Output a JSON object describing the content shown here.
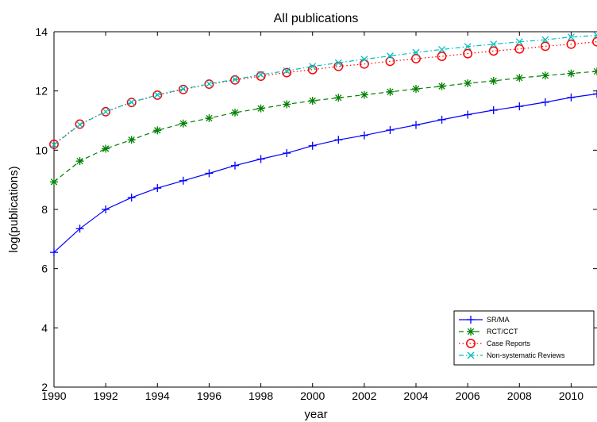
{
  "chart_data": {
    "type": "line",
    "title": "All publications",
    "xlabel": "year",
    "ylabel": "log(publications)",
    "xlim": [
      1990,
      2011
    ],
    "ylim": [
      2,
      14
    ],
    "x_ticks": [
      1990,
      1992,
      1994,
      1996,
      1998,
      2000,
      2002,
      2004,
      2006,
      2008,
      2010
    ],
    "y_ticks": [
      2,
      4,
      6,
      8,
      10,
      12,
      14
    ],
    "grid": false,
    "legend_position": "bottom-right",
    "x": [
      1990,
      1991,
      1992,
      1993,
      1994,
      1995,
      1996,
      1997,
      1998,
      1999,
      2000,
      2001,
      2002,
      2003,
      2004,
      2005,
      2006,
      2007,
      2008,
      2009,
      2010,
      2011
    ],
    "series": [
      {
        "name": "SR/MA",
        "color": "#0000ff",
        "line_style": "solid",
        "marker": "plus",
        "values": [
          6.55,
          7.35,
          8.0,
          8.4,
          8.72,
          8.97,
          9.22,
          9.48,
          9.7,
          9.9,
          10.15,
          10.35,
          10.5,
          10.68,
          10.85,
          11.03,
          11.2,
          11.35,
          11.48,
          11.62,
          11.78,
          11.9
        ]
      },
      {
        "name": "RCT/CCT",
        "color": "#008000",
        "line_style": "dashed",
        "marker": "star",
        "values": [
          8.93,
          9.63,
          10.05,
          10.35,
          10.67,
          10.9,
          11.08,
          11.27,
          11.41,
          11.55,
          11.67,
          11.77,
          11.87,
          11.97,
          12.07,
          12.16,
          12.26,
          12.34,
          12.44,
          12.52,
          12.59,
          12.66
        ]
      },
      {
        "name": "Case Reports",
        "color": "#ff0000",
        "line_style": "dotted",
        "marker": "circle",
        "values": [
          10.2,
          10.88,
          11.3,
          11.61,
          11.86,
          12.05,
          12.23,
          12.37,
          12.5,
          12.62,
          12.72,
          12.83,
          12.91,
          13.0,
          13.09,
          13.17,
          13.26,
          13.35,
          13.42,
          13.51,
          13.58,
          13.66
        ]
      },
      {
        "name": "Non-systematic Reviews",
        "color": "#00bfbf",
        "line_style": "dashdot",
        "marker": "x",
        "values": [
          10.18,
          10.86,
          11.3,
          11.62,
          11.87,
          12.07,
          12.24,
          12.39,
          12.55,
          12.68,
          12.83,
          12.95,
          13.07,
          13.18,
          13.3,
          13.4,
          13.5,
          13.58,
          13.66,
          13.73,
          13.82,
          13.88
        ]
      }
    ]
  }
}
